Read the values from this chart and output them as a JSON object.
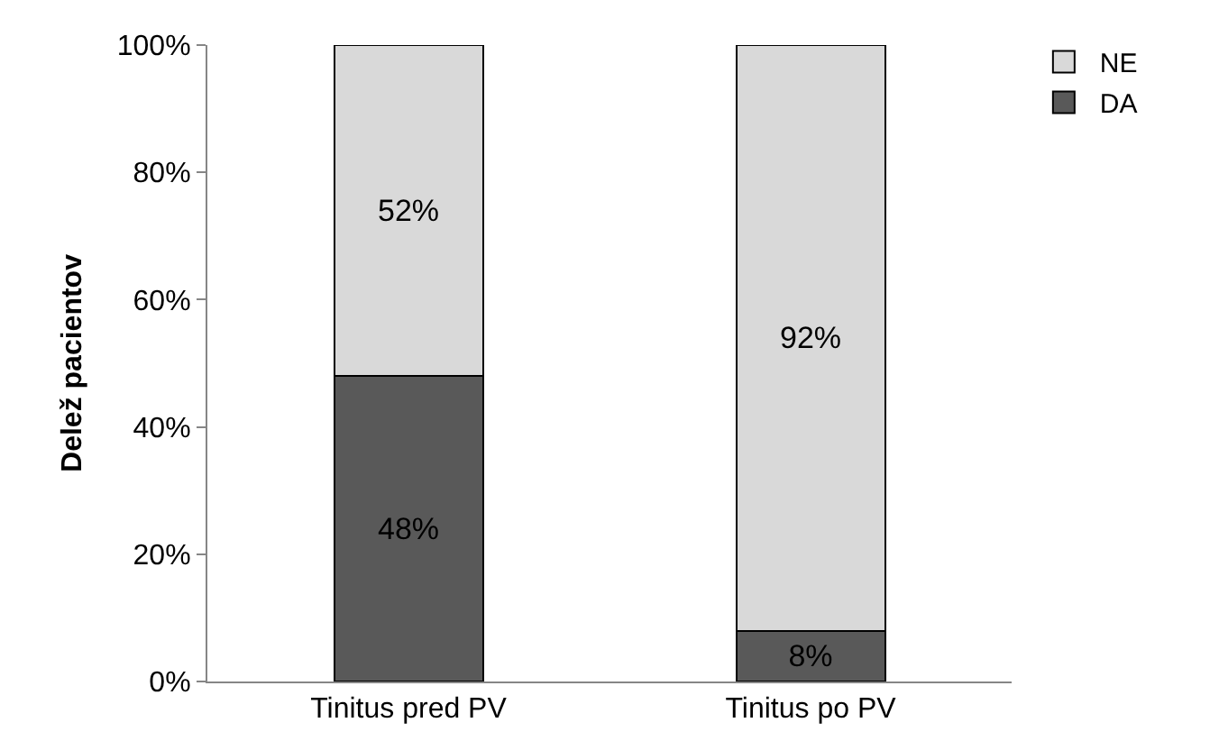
{
  "chart_data": {
    "type": "bar",
    "stacked": true,
    "ylabel": "Delež pacientov",
    "categories": [
      "Tinitus pred PV",
      "Tinitus po PV"
    ],
    "series": [
      {
        "name": "DA",
        "color": "#595959",
        "values": [
          48,
          8
        ],
        "value_labels": [
          "48%",
          "8%"
        ]
      },
      {
        "name": "NE",
        "color": "#d9d9d9",
        "values": [
          52,
          92
        ],
        "value_labels": [
          "52%",
          "92%"
        ]
      }
    ],
    "ylim": [
      0,
      100
    ],
    "yticks": [
      {
        "value": 0,
        "label": "0%"
      },
      {
        "value": 20,
        "label": "20%"
      },
      {
        "value": 40,
        "label": "40%"
      },
      {
        "value": 60,
        "label": "60%"
      },
      {
        "value": 80,
        "label": "80%"
      },
      {
        "value": 100,
        "label": "100%"
      }
    ],
    "legend": "top right"
  }
}
